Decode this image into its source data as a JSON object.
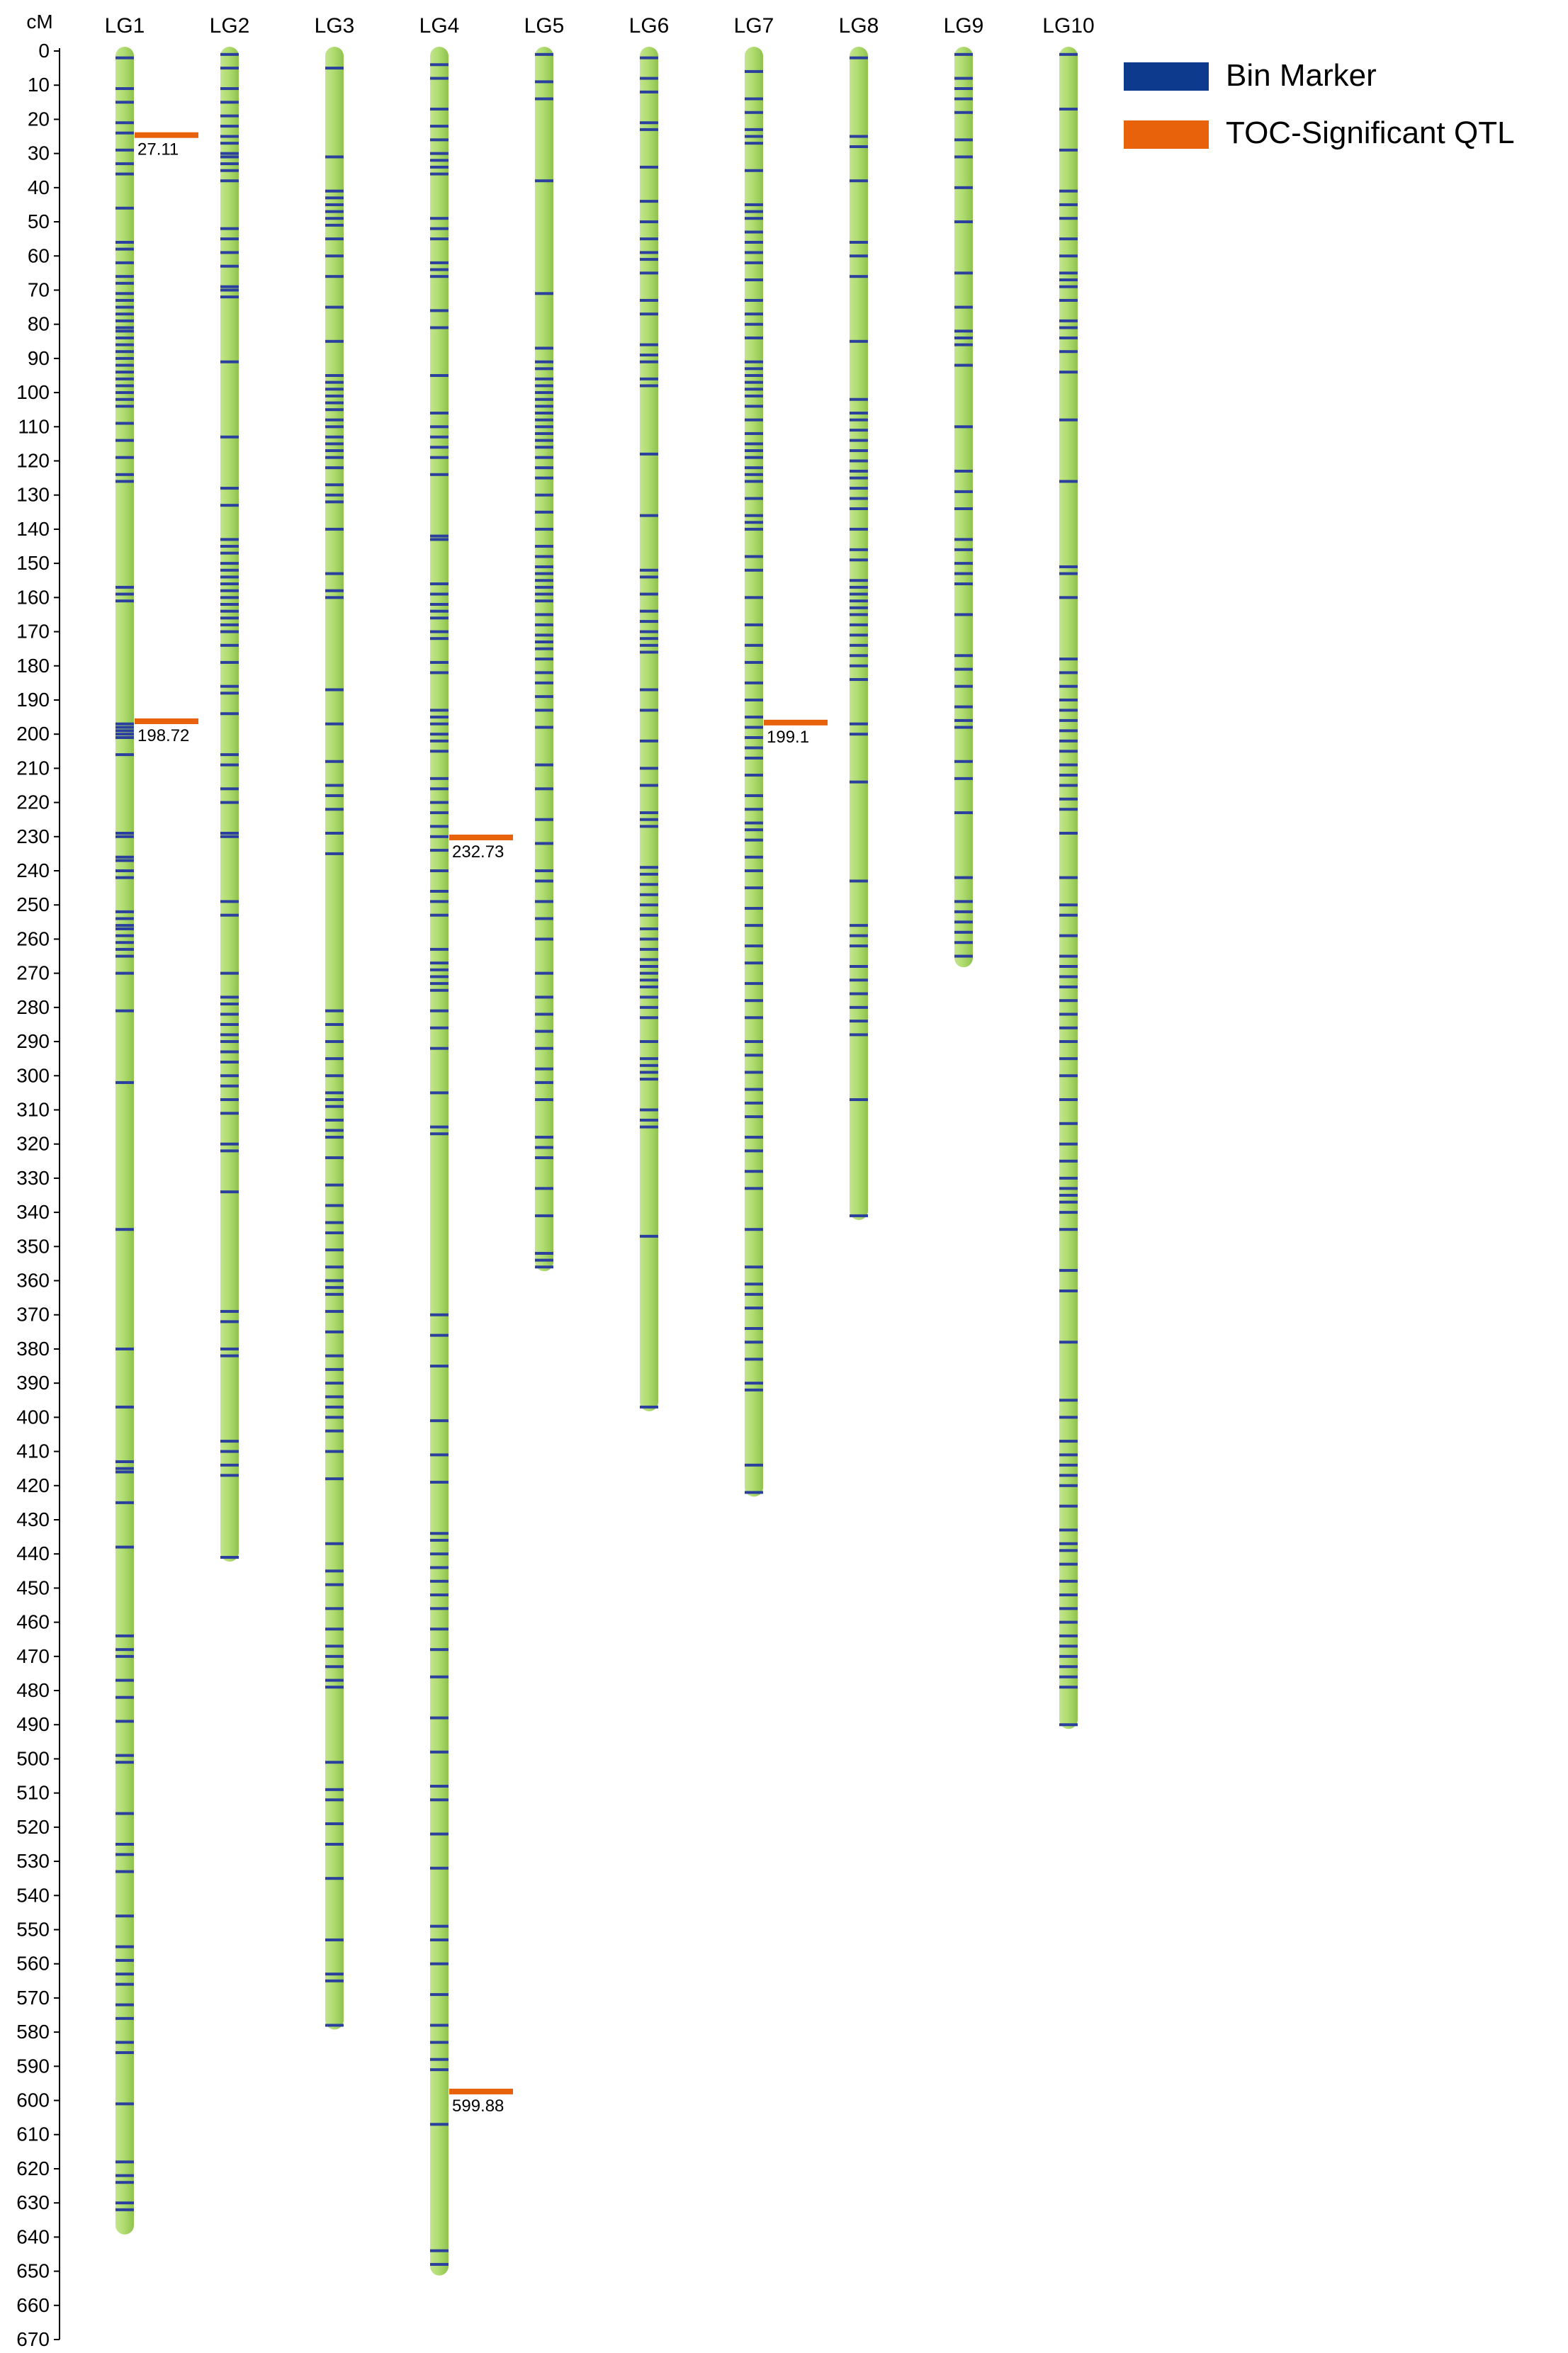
{
  "chart_data": {
    "type": "linkage_map",
    "ylabel": "cM",
    "ylim": [
      0,
      670
    ],
    "ytick_step": 10,
    "bar_color": "#a9d66a",
    "colors": {
      "bin_marker": "#2a3f9e",
      "qtl": "#e8620c"
    },
    "legend": {
      "placement": "top-right",
      "items": [
        {
          "label": "Bin Marker",
          "color": "#0d3a8c"
        },
        {
          "label": "TOC-Significant QTL",
          "color": "#e8620c"
        }
      ]
    },
    "groups": [
      {
        "name": "LG1",
        "length": 638,
        "markers": [
          2,
          11,
          15,
          21,
          24,
          29,
          33,
          36,
          46,
          56,
          58,
          62,
          66,
          68,
          71,
          73,
          75,
          77,
          79,
          81,
          82,
          84,
          86,
          88,
          90,
          92,
          94,
          96,
          98,
          100,
          102,
          104,
          109,
          114,
          119,
          124,
          126,
          157,
          159,
          161,
          197,
          198,
          199,
          200,
          201,
          206,
          229,
          230,
          236,
          237,
          240,
          242,
          252,
          254,
          256,
          257,
          259,
          261,
          263,
          265,
          270,
          281,
          302,
          345,
          380,
          397,
          413,
          415,
          416,
          425,
          438,
          464,
          468,
          470,
          477,
          482,
          489,
          499,
          501,
          516,
          525,
          528,
          533,
          546,
          555,
          559,
          563,
          566,
          572,
          576,
          583,
          586,
          601,
          618,
          622,
          624,
          630,
          632
        ]
      },
      {
        "name": "LG2",
        "length": 441,
        "markers": [
          1,
          5,
          11,
          15,
          19,
          22,
          25,
          27,
          30,
          31,
          33,
          35,
          38,
          52,
          55,
          59,
          63,
          69,
          70,
          72,
          91,
          113,
          128,
          133,
          143,
          145,
          147,
          150,
          152,
          154,
          156,
          158,
          160,
          162,
          164,
          166,
          168,
          170,
          174,
          179,
          186,
          188,
          194,
          206,
          209,
          216,
          220,
          229,
          230,
          249,
          253,
          270,
          277,
          279,
          282,
          285,
          288,
          290,
          293,
          296,
          300,
          303,
          307,
          311,
          320,
          322,
          334,
          369,
          372,
          380,
          382,
          407,
          410,
          414,
          417,
          441
        ]
      },
      {
        "name": "LG3",
        "length": 578,
        "markers": [
          5,
          31,
          41,
          43,
          45,
          47,
          49,
          51,
          55,
          60,
          66,
          75,
          85,
          95,
          97,
          99,
          101,
          103,
          105,
          108,
          110,
          113,
          115,
          117,
          119,
          122,
          127,
          130,
          132,
          140,
          153,
          158,
          160,
          187,
          197,
          208,
          215,
          218,
          222,
          229,
          235,
          281,
          285,
          290,
          295,
          300,
          305,
          307,
          309,
          313,
          316,
          318,
          324,
          332,
          338,
          343,
          346,
          351,
          356,
          360,
          362,
          364,
          369,
          375,
          382,
          386,
          390,
          394,
          397,
          400,
          404,
          410,
          418,
          437,
          445,
          449,
          456,
          462,
          467,
          470,
          473,
          477,
          479,
          501,
          509,
          512,
          519,
          525,
          535,
          553,
          563,
          565,
          578
        ]
      },
      {
        "name": "LG4",
        "length": 650,
        "markers": [
          4,
          8,
          17,
          22,
          26,
          30,
          32,
          34,
          36,
          49,
          52,
          55,
          62,
          64,
          66,
          76,
          81,
          95,
          106,
          110,
          113,
          116,
          119,
          124,
          142,
          143,
          156,
          159,
          162,
          164,
          166,
          170,
          172,
          179,
          182,
          193,
          195,
          197,
          200,
          202,
          205,
          213,
          216,
          220,
          223,
          227,
          230,
          234,
          240,
          246,
          249,
          253,
          263,
          267,
          269,
          271,
          273,
          275,
          281,
          286,
          292,
          305,
          315,
          317,
          370,
          376,
          385,
          401,
          411,
          419,
          434,
          436,
          440,
          444,
          448,
          452,
          456,
          462,
          468,
          476,
          488,
          498,
          508,
          512,
          522,
          532,
          549,
          553,
          560,
          569,
          578,
          583,
          588,
          591,
          607,
          644,
          648
        ]
      },
      {
        "name": "LG5",
        "length": 356,
        "markers": [
          1,
          9,
          14,
          38,
          71,
          87,
          91,
          93,
          96,
          98,
          100,
          102,
          104,
          106,
          108,
          110,
          112,
          114,
          116,
          119,
          122,
          125,
          130,
          135,
          140,
          145,
          148,
          151,
          153,
          155,
          157,
          159,
          161,
          165,
          168,
          171,
          173,
          175,
          178,
          182,
          185,
          189,
          193,
          198,
          209,
          216,
          225,
          232,
          240,
          243,
          249,
          254,
          260,
          270,
          277,
          282,
          287,
          292,
          298,
          302,
          307,
          318,
          321,
          324,
          333,
          341,
          352,
          354,
          356
        ]
      },
      {
        "name": "LG6",
        "length": 397,
        "markers": [
          2,
          8,
          12,
          21,
          23,
          34,
          44,
          50,
          55,
          59,
          61,
          65,
          73,
          77,
          86,
          89,
          91,
          96,
          98,
          118,
          136,
          152,
          154,
          159,
          164,
          167,
          170,
          172,
          174,
          176,
          187,
          193,
          202,
          210,
          215,
          223,
          225,
          227,
          239,
          241,
          244,
          247,
          250,
          253,
          257,
          260,
          263,
          266,
          268,
          270,
          272,
          274,
          277,
          280,
          283,
          290,
          295,
          297,
          299,
          301,
          310,
          313,
          315,
          347,
          397
        ]
      },
      {
        "name": "LG7",
        "length": 422,
        "markers": [
          6,
          14,
          18,
          23,
          25,
          27,
          35,
          45,
          47,
          49,
          53,
          56,
          59,
          62,
          67,
          73,
          77,
          80,
          84,
          91,
          93,
          95,
          97,
          99,
          101,
          104,
          108,
          112,
          115,
          117,
          119,
          122,
          124,
          126,
          131,
          136,
          138,
          140,
          148,
          152,
          160,
          168,
          174,
          179,
          185,
          190,
          195,
          198,
          201,
          204,
          207,
          212,
          218,
          222,
          226,
          228,
          231,
          236,
          240,
          245,
          251,
          256,
          262,
          267,
          273,
          278,
          283,
          290,
          294,
          299,
          304,
          308,
          312,
          318,
          322,
          328,
          333,
          345,
          356,
          361,
          364,
          368,
          374,
          378,
          383,
          390,
          392,
          414,
          422
        ]
      },
      {
        "name": "LG8",
        "length": 341,
        "markers": [
          2,
          25,
          28,
          38,
          56,
          60,
          66,
          85,
          102,
          106,
          108,
          111,
          114,
          117,
          120,
          123,
          125,
          128,
          131,
          134,
          140,
          146,
          149,
          155,
          157,
          159,
          161,
          163,
          165,
          168,
          171,
          174,
          177,
          180,
          184,
          197,
          200,
          214,
          243,
          256,
          259,
          262,
          268,
          272,
          276,
          280,
          284,
          288,
          307,
          341
        ]
      },
      {
        "name": "LG9",
        "length": 267,
        "markers": [
          1,
          8,
          11,
          14,
          18,
          26,
          31,
          40,
          50,
          65,
          75,
          82,
          84,
          86,
          92,
          110,
          123,
          129,
          134,
          143,
          146,
          150,
          153,
          156,
          165,
          177,
          181,
          186,
          192,
          196,
          198,
          208,
          213,
          223,
          242,
          249,
          252,
          255,
          258,
          261,
          265
        ]
      },
      {
        "name": "LG10",
        "length": 490,
        "markers": [
          1,
          17,
          29,
          41,
          45,
          49,
          55,
          60,
          65,
          67,
          69,
          73,
          79,
          81,
          84,
          88,
          94,
          108,
          126,
          151,
          153,
          160,
          178,
          182,
          186,
          190,
          193,
          196,
          199,
          202,
          205,
          209,
          212,
          215,
          219,
          222,
          229,
          242,
          250,
          253,
          259,
          265,
          268,
          271,
          274,
          278,
          282,
          286,
          290,
          295,
          300,
          307,
          314,
          320,
          325,
          330,
          333,
          335,
          337,
          340,
          345,
          357,
          363,
          378,
          395,
          400,
          407,
          411,
          414,
          417,
          420,
          426,
          433,
          437,
          439,
          443,
          448,
          452,
          456,
          460,
          464,
          467,
          470,
          473,
          476,
          479,
          490
        ]
      }
    ],
    "qtls": [
      {
        "group": "LG1",
        "position": 27.11,
        "label": "27.11"
      },
      {
        "group": "LG1",
        "position": 198.72,
        "label": "198.72"
      },
      {
        "group": "LG4",
        "position": 232.73,
        "label": "232.73"
      },
      {
        "group": "LG7",
        "position": 199.1,
        "label": "199.1"
      },
      {
        "group": "LG4",
        "position": 599.88,
        "label": "599.88"
      }
    ]
  }
}
